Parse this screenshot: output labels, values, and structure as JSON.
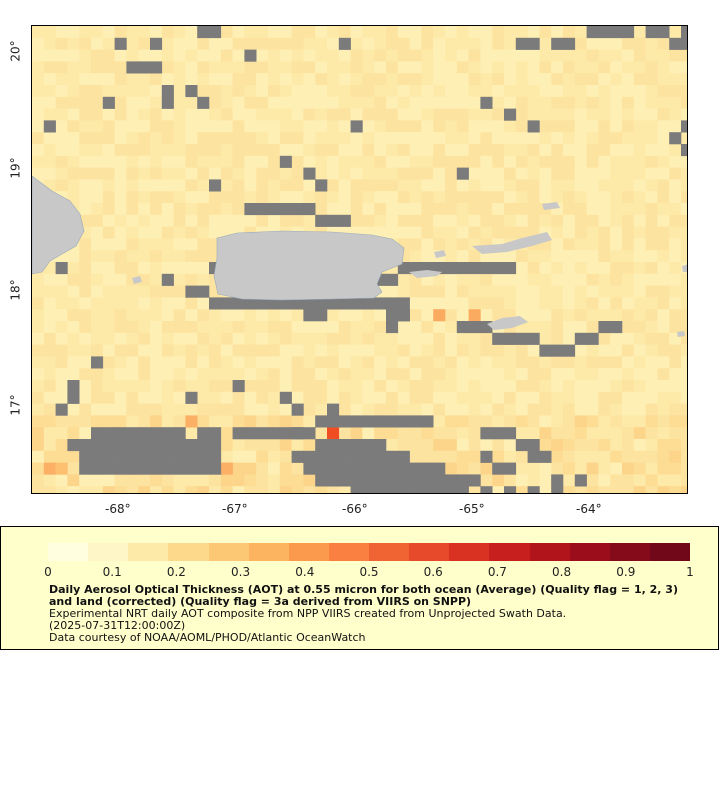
{
  "map": {
    "x_axis": {
      "ticks": [
        "-68°",
        "-67°",
        "-66°",
        "-65°",
        "-64°"
      ]
    },
    "y_axis": {
      "ticks": [
        "20°",
        "19°",
        "18°",
        "17°"
      ]
    },
    "colors": {
      "ocean_base": "#fde7a3",
      "land": "#c8c8c8",
      "no_data": "#7b7b7b",
      "hotspot": "#f04d22"
    },
    "features": [
      "puerto-rico",
      "hispaniola-east",
      "virgin-islands",
      "st-croix"
    ]
  },
  "legend": {
    "scale_labels": [
      "0",
      "0.1",
      "0.2",
      "0.3",
      "0.4",
      "0.5",
      "0.6",
      "0.7",
      "0.8",
      "0.9",
      "1"
    ],
    "scale_colors": [
      "#ffffe0",
      "#fff6c8",
      "#fde9a8",
      "#fdd98c",
      "#fdc874",
      "#fcb460",
      "#fb9a4c",
      "#f98040",
      "#f06434",
      "#e64a2a",
      "#d93222",
      "#c61f1e",
      "#b2141c",
      "#9c0d1b",
      "#850a1a",
      "#700819"
    ],
    "title": "Daily Aerosol Optical Thickness (AOT) at 0.55 micron for both ocean (Average) (Quality flag = 1, 2, 3) and land (corrected) (Quality flag = 3a derived from VIIRS on SNPP)",
    "line1": "Experimental NRT daily AOT composite from NPP VIIRS created from Unprojected Swath Data.",
    "line2": "(2025-07-31T12:00:00Z)",
    "line3": "Data courtesy of NOAA/AOML/PHOD/Atlantic OceanWatch"
  }
}
